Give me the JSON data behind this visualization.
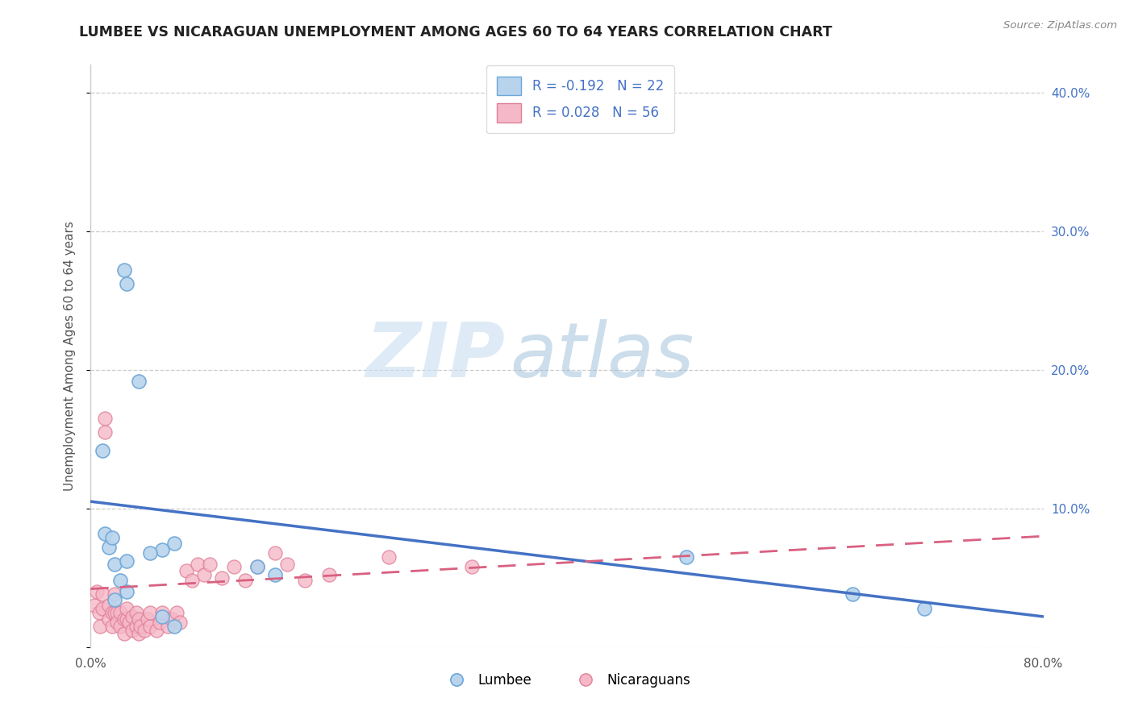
{
  "title": "LUMBEE VS NICARAGUAN UNEMPLOYMENT AMONG AGES 60 TO 64 YEARS CORRELATION CHART",
  "source": "Source: ZipAtlas.com",
  "ylabel": "Unemployment Among Ages 60 to 64 years",
  "xlim": [
    0.0,
    0.8
  ],
  "ylim": [
    0.0,
    0.42
  ],
  "xticks": [
    0.0,
    0.1,
    0.2,
    0.3,
    0.4,
    0.5,
    0.6,
    0.7,
    0.8
  ],
  "xtick_labels": [
    "0.0%",
    "",
    "",
    "",
    "",
    "",
    "",
    "",
    "80.0%"
  ],
  "yticks_right": [
    0.1,
    0.2,
    0.3,
    0.4
  ],
  "ytick_labels_right": [
    "10.0%",
    "20.0%",
    "30.0%",
    "40.0%"
  ],
  "lumbee_R": -0.192,
  "lumbee_N": 22,
  "nicaraguan_R": 0.028,
  "nicaraguan_N": 56,
  "lumbee_face_color": "#b8d4ed",
  "lumbee_edge_color": "#6ea6d8",
  "nicaraguan_face_color": "#f5b8c8",
  "nicaraguan_edge_color": "#e08098",
  "lumbee_line_color": "#4472c4",
  "nicaraguan_line_color": "#d96080",
  "background_color": "#ffffff",
  "lumbee_x": [
    0.02,
    0.028,
    0.03,
    0.04,
    0.01,
    0.012,
    0.015,
    0.018,
    0.02,
    0.025,
    0.03,
    0.06,
    0.07,
    0.14,
    0.155,
    0.06,
    0.03,
    0.05,
    0.07,
    0.5,
    0.64,
    0.7
  ],
  "lumbee_y": [
    0.034,
    0.272,
    0.262,
    0.192,
    0.142,
    0.082,
    0.072,
    0.079,
    0.06,
    0.048,
    0.04,
    0.022,
    0.015,
    0.058,
    0.052,
    0.07,
    0.062,
    0.068,
    0.075,
    0.065,
    0.038,
    0.028
  ],
  "nicaraguan_x": [
    0.003,
    0.005,
    0.007,
    0.008,
    0.01,
    0.01,
    0.012,
    0.012,
    0.015,
    0.015,
    0.018,
    0.018,
    0.02,
    0.02,
    0.022,
    0.022,
    0.025,
    0.025,
    0.028,
    0.028,
    0.03,
    0.03,
    0.032,
    0.035,
    0.035,
    0.038,
    0.038,
    0.04,
    0.04,
    0.042,
    0.045,
    0.048,
    0.05,
    0.05,
    0.055,
    0.058,
    0.06,
    0.065,
    0.068,
    0.072,
    0.075,
    0.08,
    0.085,
    0.09,
    0.095,
    0.1,
    0.11,
    0.12,
    0.13,
    0.14,
    0.155,
    0.165,
    0.18,
    0.2,
    0.25,
    0.32
  ],
  "nicaraguan_y": [
    0.03,
    0.04,
    0.025,
    0.015,
    0.038,
    0.028,
    0.165,
    0.155,
    0.03,
    0.02,
    0.025,
    0.015,
    0.025,
    0.038,
    0.025,
    0.018,
    0.015,
    0.025,
    0.02,
    0.01,
    0.02,
    0.028,
    0.018,
    0.012,
    0.022,
    0.015,
    0.025,
    0.01,
    0.02,
    0.015,
    0.012,
    0.02,
    0.015,
    0.025,
    0.012,
    0.018,
    0.025,
    0.015,
    0.02,
    0.025,
    0.018,
    0.055,
    0.048,
    0.06,
    0.052,
    0.06,
    0.05,
    0.058,
    0.048,
    0.058,
    0.068,
    0.06,
    0.048,
    0.052,
    0.065,
    0.058
  ],
  "lumbee_trend_x": [
    0.0,
    0.8
  ],
  "lumbee_trend_y": [
    0.105,
    0.022
  ],
  "nicaraguan_trend_x": [
    0.0,
    0.8
  ],
  "nicaraguan_trend_y": [
    0.042,
    0.08
  ]
}
